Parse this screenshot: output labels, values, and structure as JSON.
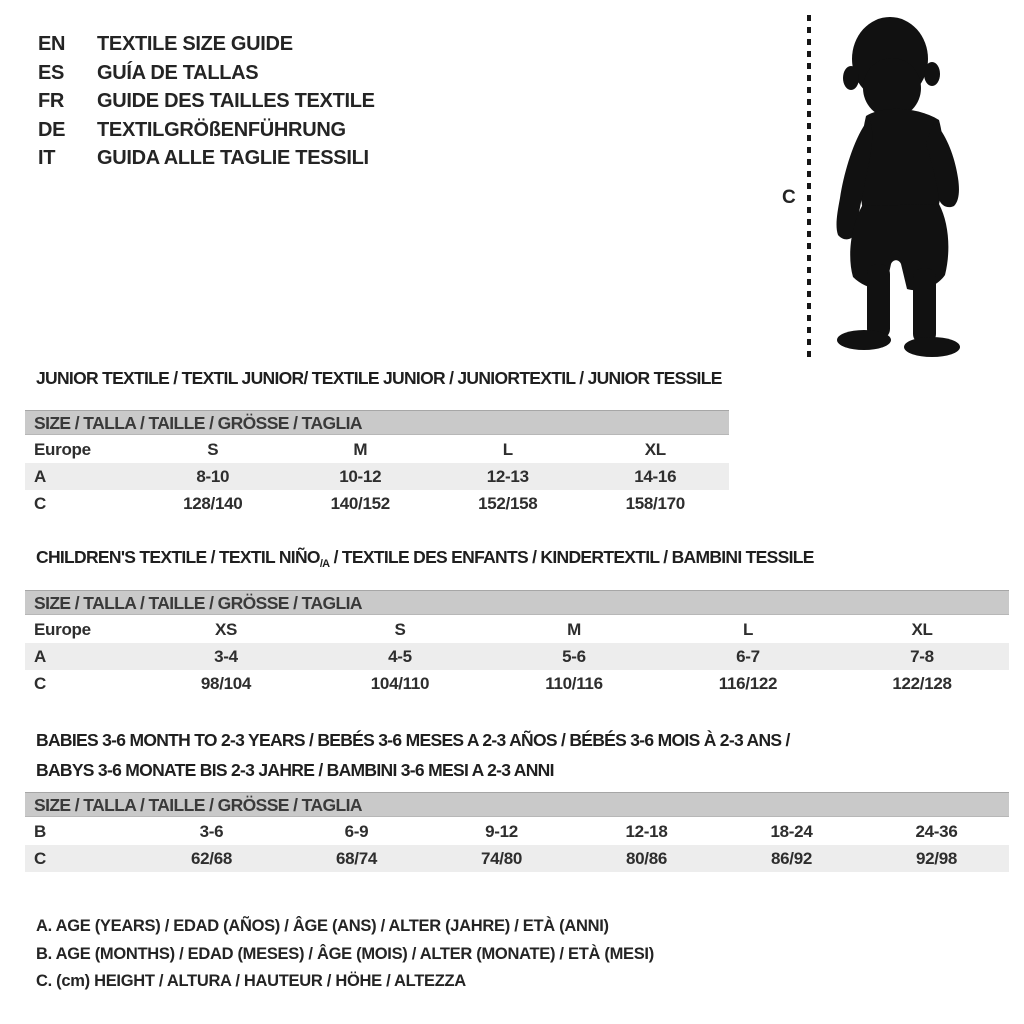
{
  "languages": {
    "items": [
      {
        "code": "EN",
        "label": "TEXTILE SIZE GUIDE"
      },
      {
        "code": "ES",
        "label": "GUÍA DE TALLAS"
      },
      {
        "code": "FR",
        "label": "GUIDE DES TAILLES TEXTILE"
      },
      {
        "code": "DE",
        "label": "TEXTILGRÖßENFÜHRUNG"
      },
      {
        "code": "IT",
        "label": "GUIDA ALLE TAGLIE TESSILI"
      }
    ]
  },
  "figure": {
    "measure_label": "C",
    "silhouette_icon": "toddler-standing-silhouette"
  },
  "sections": [
    {
      "title": "JUNIOR TEXTILE / TEXTIL JUNIOR/ TEXTILE JUNIOR / JUNIORTEXTIL / JUNIOR TESSILE",
      "size_header": "SIZE / TALLA / TAILLE / GRÖSSE / TAGLIA",
      "rows": [
        [
          "Europe",
          "S",
          "M",
          "L",
          "XL"
        ],
        [
          "A",
          "8-10",
          "10-12",
          "12-13",
          "14-16"
        ],
        [
          "C",
          "128/140",
          "140/152",
          "152/158",
          "158/170"
        ]
      ]
    },
    {
      "title_pre": "CHILDREN'S TEXTILE / TEXTIL NIÑO",
      "title_sub": "/A",
      "title_post": " / TEXTILE DES ENFANTS / KINDERTEXTIL / BAMBINI TESSILE",
      "size_header": "SIZE / TALLA / TAILLE / GRÖSSE / TAGLIA",
      "rows": [
        [
          "Europe",
          "XS",
          "S",
          "M",
          "L",
          "XL"
        ],
        [
          "A",
          "3-4",
          "4-5",
          "5-6",
          "6-7",
          "7-8"
        ],
        [
          "C",
          "98/104",
          "104/110",
          "110/116",
          "116/122",
          "122/128"
        ]
      ]
    },
    {
      "title_line1": "BABIES 3-6 MONTH TO 2-3 YEARS / BEBÉS 3-6 MESES A 2-3 AÑOS / BÉBÉS 3-6 MOIS À 2-3 ANS /",
      "title_line2": "BABYS 3-6 MONATE BIS 2-3 JAHRE / BAMBINI 3-6 MESI A 2-3 ANNI",
      "size_header": "SIZE / TALLA / TAILLE / GRÖSSE / TAGLIA",
      "rows": [
        [
          "B",
          "3-6",
          "6-9",
          "9-12",
          "12-18",
          "18-24",
          "24-36"
        ],
        [
          "C",
          "62/68",
          "68/74",
          "74/80",
          "80/86",
          "86/92",
          "92/98"
        ]
      ]
    }
  ],
  "legend": {
    "lines": [
      "A. AGE (YEARS) / EDAD (AÑOS) / ÂGE (ANS) / ALTER (JAHRE) / ETÀ (ANNI)",
      "B. AGE (MONTHS) / EDAD (MESES) / ÂGE (MOIS) / ALTER (MONATE) / ETÀ (MESI)",
      "C. (cm) HEIGHT / ALTURA / HAUTEUR / HÖHE / ALTEZZA"
    ]
  },
  "colors": {
    "silhouette": "#111111",
    "table_header_bg": "#c9c9c9",
    "row_shade_bg": "#ededed",
    "text": "#242424"
  }
}
